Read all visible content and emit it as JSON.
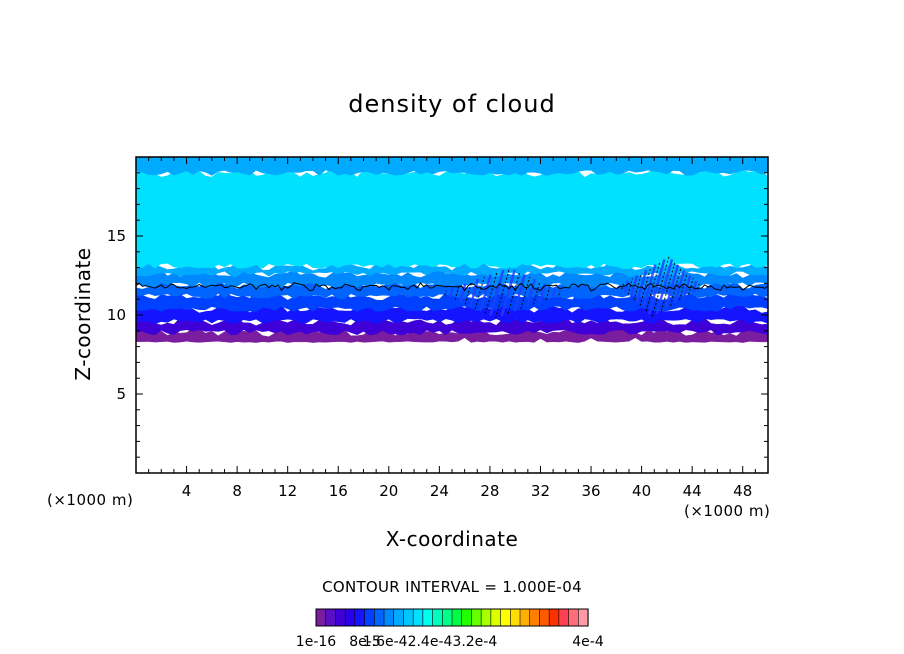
{
  "chart_data": {
    "type": "heatmap",
    "title": "density of cloud",
    "xlabel": "X-coordinate",
    "ylabel": "Z-coordinate",
    "x_unit_label_left": "(×1000 m)",
    "x_unit_label_right": "(×1000 m)",
    "xlim": [
      0,
      50
    ],
    "ylim": [
      0,
      20
    ],
    "x_ticks": [
      4,
      8,
      12,
      16,
      20,
      24,
      28,
      32,
      36,
      40,
      44,
      48
    ],
    "y_ticks": [
      5,
      10,
      15
    ],
    "contour_interval_text": "CONTOUR INTERVAL = 1.000E-04",
    "colorbar_labels": [
      "1e-16",
      "8e-5",
      "1.6e-4",
      "2.4e-4",
      "3.2e-4",
      "4e-4"
    ],
    "colorbar_labels_display": [
      "1e-16",
      "8e-5",
      "1.6e-42.4e-43.2e-4",
      "4e-4"
    ],
    "colorbar_colors": [
      "#7a1d9e",
      "#5b0ec4",
      "#3f00d8",
      "#2a00ea",
      "#1414ff",
      "#0040ff",
      "#0064ff",
      "#0088ff",
      "#00aaff",
      "#00c8ff",
      "#00e0ff",
      "#00ffee",
      "#00ffbb",
      "#00ff88",
      "#00ff44",
      "#22ff00",
      "#66ff00",
      "#aaff00",
      "#ddff00",
      "#ffff00",
      "#ffdd00",
      "#ffb000",
      "#ff8000",
      "#ff5a00",
      "#ff3000",
      "#ff4050",
      "#ff6f7a",
      "#ff9aa6"
    ],
    "cloud_bands": [
      {
        "z_bottom": 8.3,
        "z_top": 8.9,
        "color": "#7a1d9e"
      },
      {
        "z_bottom": 8.9,
        "z_top": 9.6,
        "color": "#3f00d8"
      },
      {
        "z_bottom": 9.6,
        "z_top": 10.4,
        "color": "#1414ff"
      },
      {
        "z_bottom": 10.4,
        "z_top": 11.2,
        "color": "#0040ff"
      },
      {
        "z_bottom": 11.2,
        "z_top": 11.9,
        "color": "#0064ff"
      },
      {
        "z_bottom": 11.9,
        "z_top": 12.6,
        "color": "#0088ff"
      },
      {
        "z_bottom": 12.6,
        "z_top": 13.1,
        "color": "#00aaff"
      },
      {
        "z_bottom": 13.1,
        "z_top": 19.0,
        "color": "#00e0ff"
      },
      {
        "z_bottom": 19.0,
        "z_top": 20.0,
        "color": "#00aaff"
      }
    ],
    "contour_level_z": 11.8,
    "perturbation_regions": [
      {
        "x_center": 29.0,
        "z_center": 11.4,
        "x_halfwidth": 4.5,
        "z_halfwidth": 1.6
      },
      {
        "x_center": 41.5,
        "z_center": 11.8,
        "x_halfwidth": 3.0,
        "z_halfwidth": 1.9
      }
    ],
    "grid": false,
    "legend": "colorbar-bottom"
  }
}
